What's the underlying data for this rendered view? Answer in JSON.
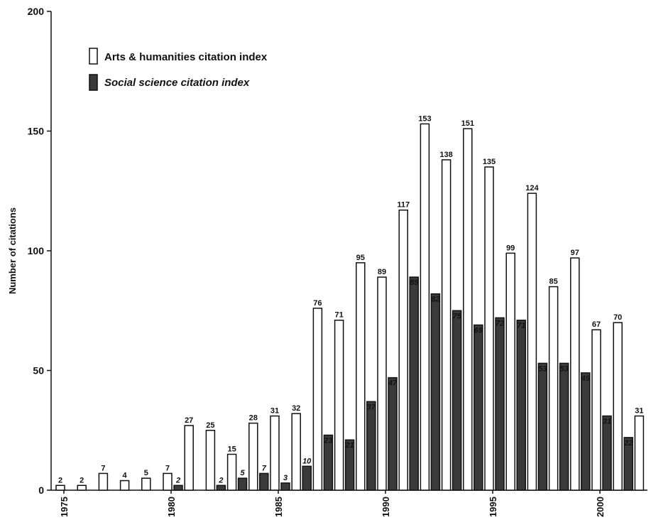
{
  "chart_data": {
    "type": "bar",
    "ylabel": "Number of citations",
    "ylim": [
      0,
      200
    ],
    "yticks": [
      0,
      50,
      100,
      150,
      200
    ],
    "xtick_labels": [
      "1975",
      "1980",
      "1985",
      "1990",
      "1995",
      "2000"
    ],
    "xtick_years": [
      1975,
      1980,
      1985,
      1990,
      1995,
      2000
    ],
    "x": [
      1975,
      1976,
      1977,
      1978,
      1979,
      1980,
      1981,
      1982,
      1983,
      1984,
      1985,
      1986,
      1987,
      1988,
      1989,
      1990,
      1991,
      1992,
      1993,
      1994,
      1995,
      1996,
      1997,
      1998,
      1999,
      2000,
      2001,
      2002
    ],
    "legend_position": "top-left",
    "grid": false,
    "series": [
      {
        "name": "Arts & humanities citation index",
        "color": "#ffffff",
        "values": [
          2,
          2,
          7,
          4,
          5,
          7,
          27,
          25,
          15,
          28,
          31,
          32,
          76,
          71,
          95,
          89,
          117,
          153,
          138,
          151,
          135,
          99,
          124,
          85,
          97,
          67,
          70,
          31
        ]
      },
      {
        "name": "Social science citation index",
        "color": "#3a3a3a",
        "values": [
          null,
          null,
          null,
          null,
          null,
          2,
          null,
          2,
          5,
          7,
          3,
          10,
          23,
          21,
          37,
          47,
          89,
          82,
          75,
          69,
          72,
          71,
          53,
          53,
          49,
          31,
          22,
          null
        ]
      }
    ]
  }
}
